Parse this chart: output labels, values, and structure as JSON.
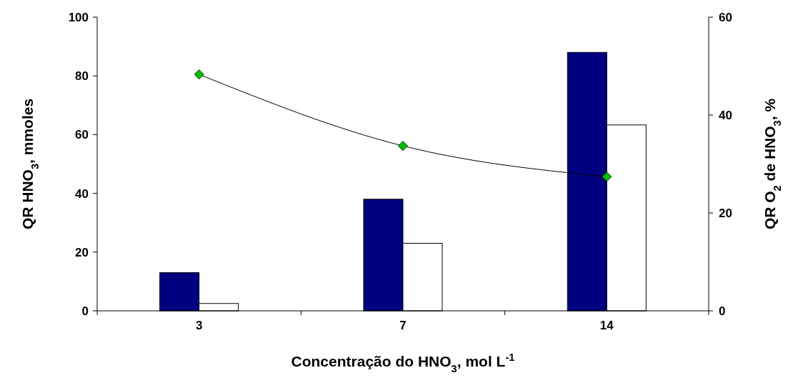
{
  "chart_data": {
    "type": "bar",
    "xlabel": "Concentração do HNO$_{3}$, mol L$^{-1}$",
    "ylabel": "QR HNO$_{3}$, mmoles",
    "y2label": "QR O$_{2}$ de HNO$_{3}$, %",
    "categories": [
      "3",
      "7",
      "14"
    ],
    "series": [
      {
        "color": "#000080",
        "values": [
          13,
          38,
          88
        ]
      },
      {
        "color": "#ffffff",
        "values": [
          2.5,
          23,
          63.3
        ]
      },
      {
        "type": "line",
        "axis": "y2",
        "color": "#00c000",
        "marker": "diamond",
        "values": [
          48.3,
          33.7,
          27.4
        ]
      }
    ],
    "ylim": [
      0,
      100
    ],
    "yticks": [
      0,
      20,
      40,
      60,
      80,
      100
    ],
    "y2lim": [
      0,
      60
    ],
    "y2ticks": [
      0,
      20,
      40,
      60
    ],
    "grid": false
  }
}
